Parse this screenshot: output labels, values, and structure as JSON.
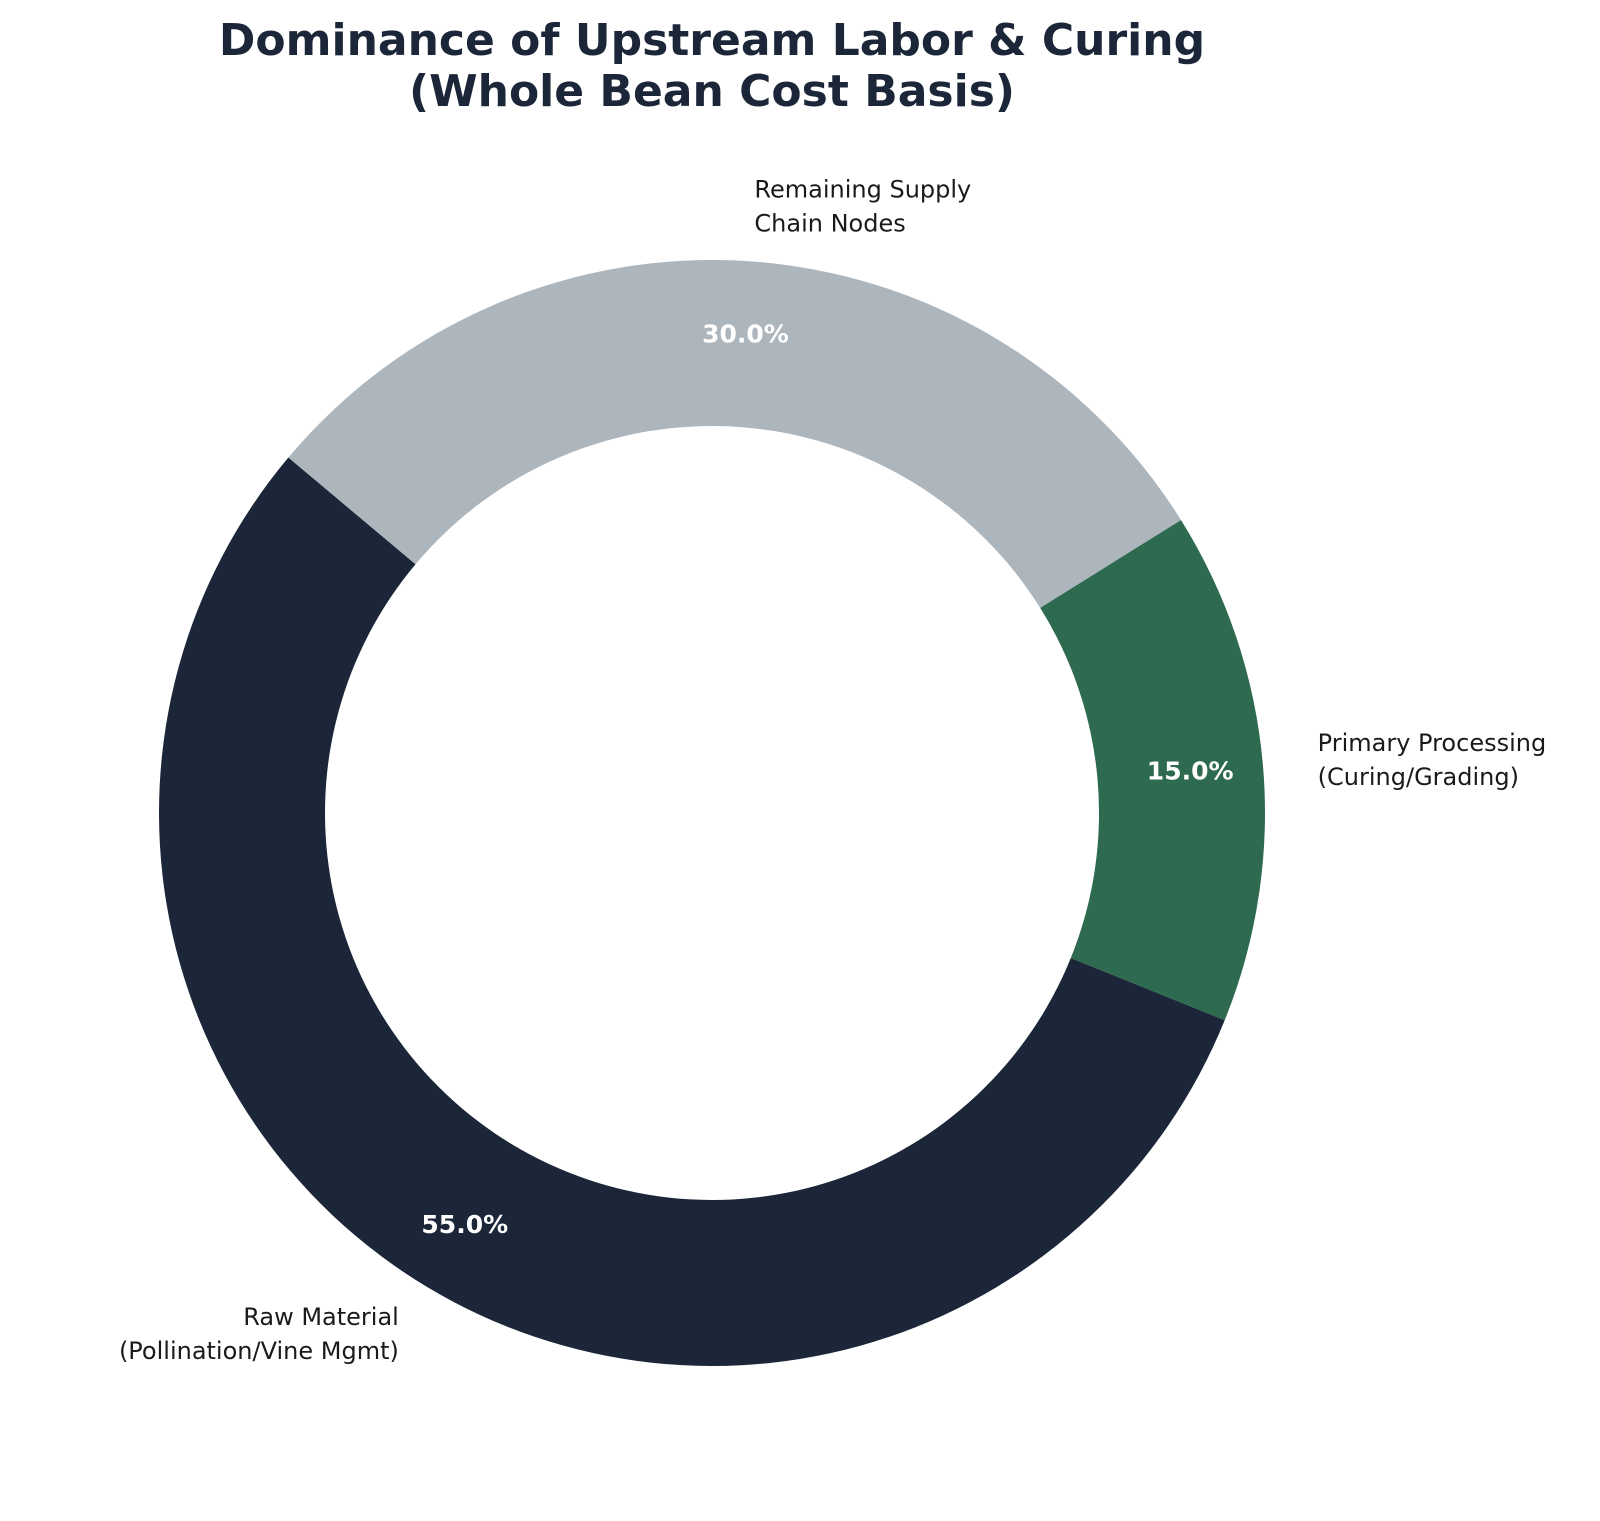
{
  "chart_data": {
    "type": "pie",
    "donut": true,
    "title": [
      "Dominance of Upstream Labor & Curing",
      "(Whole Bean Cost Basis)"
    ],
    "slices": [
      {
        "label": [
          "Raw Material",
          "(Pollination/Vine Mgmt)"
        ],
        "value": 55.0,
        "pct_label": "55.0%",
        "color": "#1c2639"
      },
      {
        "label": [
          "Primary Processing",
          "(Curing/Grading)"
        ],
        "value": 15.0,
        "pct_label": "15.0%",
        "color": "#2e6a50"
      },
      {
        "label": [
          "Remaining Supply",
          "Chain Nodes"
        ],
        "value": 30.0,
        "pct_label": "30.0%",
        "color": "#adb5bd"
      }
    ],
    "start_angle_deg": 140,
    "direction": "counterclockwise"
  }
}
